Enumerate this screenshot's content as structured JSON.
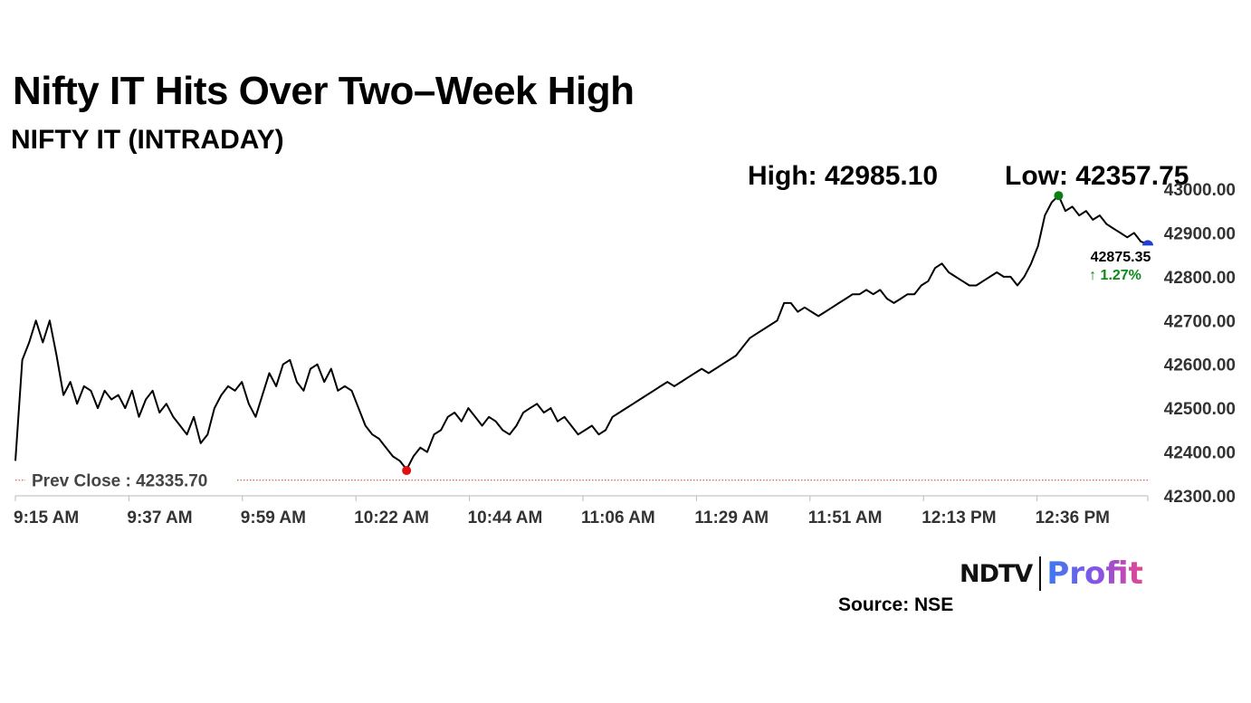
{
  "header": {
    "title": "Nifty IT Hits Over Two–Week High",
    "subtitle": "NIFTY IT (INTRADAY)",
    "high_label": "High: 42985.10",
    "low_label": "Low: 42357.75"
  },
  "footer": {
    "source": "Source: NSE",
    "logo_ndtv": "NDTV",
    "logo_profit": "Profit"
  },
  "chart_data": {
    "type": "line",
    "title": "Nifty IT Hits Over Two–Week High",
    "subtitle": "NIFTY IT (INTRADAY)",
    "series": [
      {
        "values": [
          42380,
          42610,
          42650,
          42700,
          42650,
          42700,
          42620,
          42530,
          42560,
          42510,
          42550,
          42540,
          42500,
          42540,
          42520,
          42530,
          42500,
          42540,
          42480,
          42520,
          42540,
          42490,
          42510,
          42480,
          42460,
          42440,
          42480,
          42420,
          42440,
          42500,
          42530,
          42550,
          42540,
          42560,
          42510,
          42480,
          42530,
          42580,
          42550,
          42600,
          42610,
          42560,
          42540,
          42590,
          42600,
          42560,
          42590,
          42540,
          42550,
          42540,
          42500,
          42460,
          42440,
          42430,
          42410,
          42390,
          42380,
          42360,
          42390,
          42410,
          42400,
          42440,
          42450,
          42480,
          42490,
          42470,
          42500,
          42480,
          42460,
          42480,
          42470,
          42450,
          42440,
          42460,
          42490,
          42500,
          42510,
          42490,
          42500,
          42470,
          42480,
          42460,
          42440,
          42450,
          42460,
          42440,
          42450,
          42480,
          42490,
          42500,
          42510,
          42520,
          42530,
          42540,
          42550,
          42560,
          42550,
          42560,
          42570,
          42580,
          42590,
          42580,
          42590,
          42600,
          42610,
          42620,
          42640,
          42660,
          42670,
          42680,
          42690,
          42700,
          42740,
          42740,
          42720,
          42730,
          42720,
          42710,
          42720,
          42730,
          42740,
          42750,
          42760,
          42760,
          42770,
          42760,
          42770,
          42750,
          42740,
          42750,
          42760,
          42760,
          42780,
          42790,
          42820,
          42830,
          42810,
          42800,
          42790,
          42780,
          42780,
          42790,
          42800,
          42810,
          42800,
          42800,
          42780,
          42800,
          42830,
          42870,
          42940,
          42970,
          42985.1,
          42950,
          42960,
          42940,
          42950,
          42930,
          42940,
          42920,
          42910,
          42900,
          42890,
          42900,
          42880,
          42875.35
        ]
      }
    ],
    "x_start_label": "9:15 AM",
    "xticks": [
      "9:15 AM",
      "9:37 AM",
      "9:59 AM",
      "10:22 AM",
      "10:44 AM",
      "11:06 AM",
      "11:29 AM",
      "11:51 AM",
      "12:13 PM",
      "12:36 PM"
    ],
    "ylim": [
      42300,
      43000
    ],
    "yticks": [
      "43000.00",
      "42900.00",
      "42800.00",
      "42700.00",
      "42600.00",
      "42500.00",
      "42400.00",
      "42300.00"
    ],
    "prev_close": 42335.7,
    "prev_close_label": "Prev Close : 42335.70",
    "high": 42985.1,
    "low": 42357.75,
    "last_value_label": "42875.35",
    "change_label": "↑ 1.27%",
    "colors": {
      "line": "#000000",
      "prev_close": "#c0392b",
      "high_marker": "#0a7d16",
      "low_marker": "#e01010",
      "last_marker": "#1f3fd6",
      "change": "#0a8a1a",
      "axis": "#bbbbbb"
    },
    "grid": false
  }
}
